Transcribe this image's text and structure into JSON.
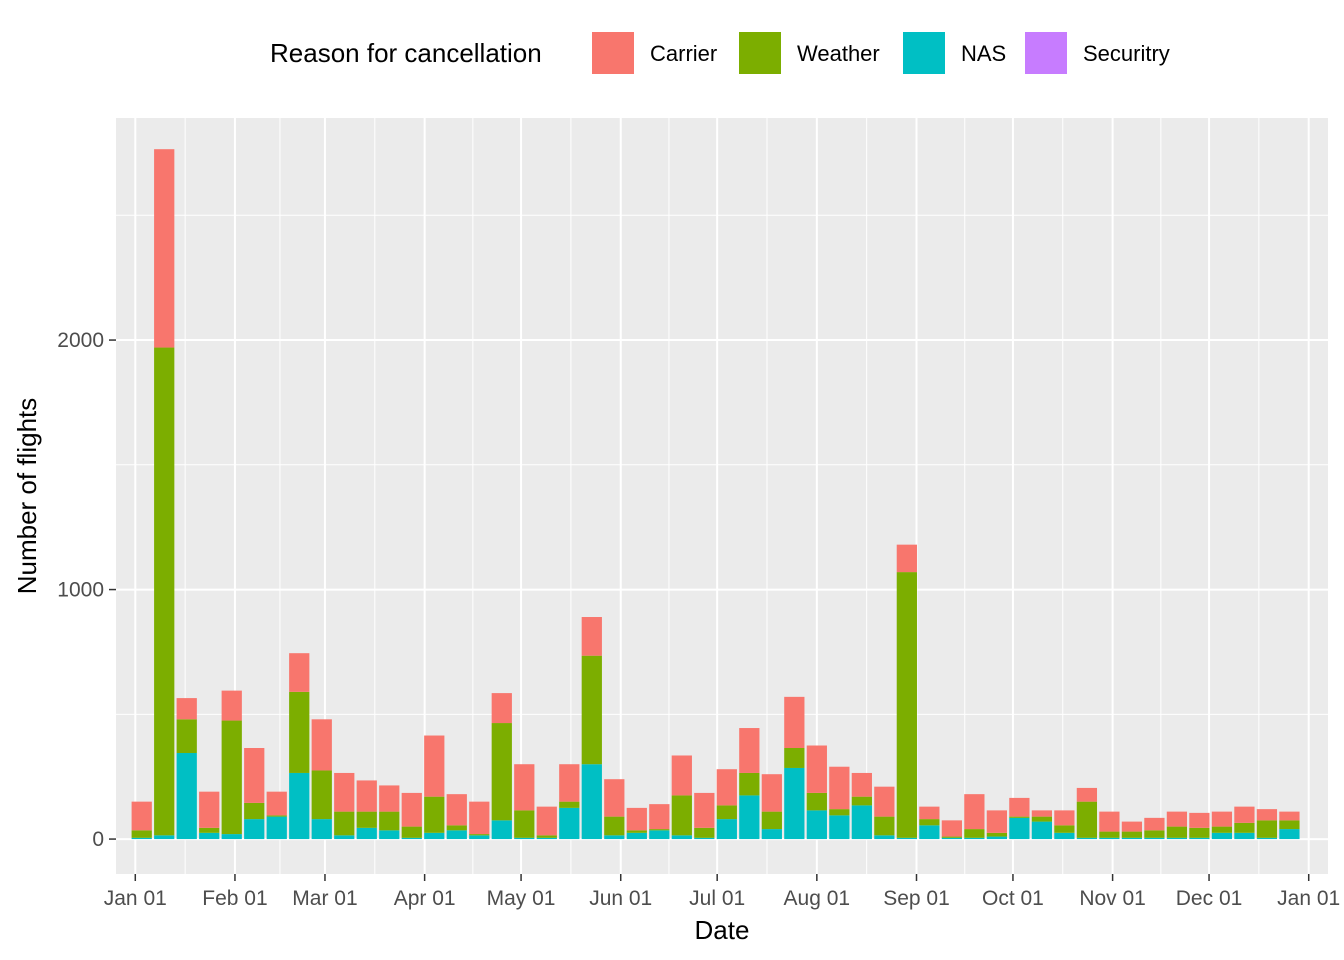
{
  "legend": {
    "title": "Reason for cancellation",
    "items": [
      {
        "label": "Carrier",
        "color": "#F8766D"
      },
      {
        "label": "Weather",
        "color": "#7CAE00"
      },
      {
        "label": "NAS",
        "color": "#00BFC4"
      },
      {
        "label": "Securitry",
        "color": "#C77CFF"
      }
    ]
  },
  "chart_data": {
    "type": "bar",
    "stacked": true,
    "title": "",
    "xlabel": "Date",
    "ylabel": "Number of flights",
    "ylim": [
      -140,
      2890
    ],
    "xlim": [
      "2012-12-26",
      "2014-01-07"
    ],
    "grid": true,
    "legend_position": "top",
    "y_ticks": [
      0,
      1000,
      2000
    ],
    "y_tick_labels": [
      "0",
      "1000",
      "2000"
    ],
    "x_ticks": [
      "2013-01-01",
      "2013-02-01",
      "2013-03-01",
      "2013-04-01",
      "2013-05-01",
      "2013-06-01",
      "2013-07-01",
      "2013-08-01",
      "2013-09-01",
      "2013-10-01",
      "2013-11-01",
      "2013-12-01",
      "2014-01-01"
    ],
    "x_tick_labels": [
      "Jan 01",
      "Feb 01",
      "Mar 01",
      "Apr 01",
      "May 01",
      "Jun 01",
      "Jul 01",
      "Aug 01",
      "Sep 01",
      "Oct 01",
      "Nov 01",
      "Dec 01",
      "Jan 01"
    ],
    "x": [
      "2013-01-03",
      "2013-01-10",
      "2013-01-17",
      "2013-01-24",
      "2013-01-31",
      "2013-02-07",
      "2013-02-14",
      "2013-02-21",
      "2013-02-28",
      "2013-03-07",
      "2013-03-14",
      "2013-03-21",
      "2013-03-28",
      "2013-04-04",
      "2013-04-11",
      "2013-04-18",
      "2013-04-25",
      "2013-05-02",
      "2013-05-09",
      "2013-05-16",
      "2013-05-23",
      "2013-05-30",
      "2013-06-06",
      "2013-06-13",
      "2013-06-20",
      "2013-06-27",
      "2013-07-04",
      "2013-07-11",
      "2013-07-18",
      "2013-07-25",
      "2013-08-01",
      "2013-08-08",
      "2013-08-15",
      "2013-08-22",
      "2013-08-29",
      "2013-09-05",
      "2013-09-12",
      "2013-09-19",
      "2013-09-26",
      "2013-10-03",
      "2013-10-10",
      "2013-10-17",
      "2013-10-24",
      "2013-10-31",
      "2013-11-07",
      "2013-11-14",
      "2013-11-21",
      "2013-11-28",
      "2013-12-05",
      "2013-12-12",
      "2013-12-19",
      "2013-12-26"
    ],
    "series": [
      {
        "name": "NAS",
        "color": "#00BFC4",
        "values": [
          5,
          15,
          345,
          25,
          20,
          80,
          90,
          265,
          80,
          15,
          45,
          35,
          5,
          25,
          35,
          15,
          75,
          5,
          5,
          125,
          300,
          15,
          25,
          35,
          15,
          5,
          80,
          175,
          40,
          285,
          115,
          95,
          135,
          15,
          5,
          55,
          5,
          5,
          10,
          85,
          70,
          25,
          5,
          5,
          5,
          5,
          5,
          5,
          25,
          25,
          5,
          40
        ]
      },
      {
        "name": "Weather",
        "color": "#7CAE00",
        "values": [
          30,
          1955,
          135,
          20,
          455,
          65,
          5,
          325,
          195,
          95,
          65,
          75,
          45,
          145,
          20,
          5,
          390,
          110,
          10,
          25,
          435,
          75,
          10,
          5,
          160,
          40,
          55,
          90,
          70,
          80,
          70,
          25,
          35,
          75,
          1065,
          25,
          5,
          35,
          15,
          5,
          20,
          30,
          145,
          25,
          25,
          30,
          45,
          40,
          25,
          40,
          70,
          35
        ]
      },
      {
        "name": "Carrier",
        "color": "#F8766D",
        "values": [
          115,
          795,
          85,
          145,
          120,
          220,
          95,
          155,
          205,
          155,
          125,
          105,
          135,
          245,
          125,
          130,
          120,
          185,
          115,
          150,
          155,
          150,
          90,
          100,
          160,
          140,
          145,
          180,
          150,
          205,
          190,
          170,
          95,
          120,
          110,
          50,
          65,
          140,
          90,
          75,
          25,
          60,
          55,
          80,
          40,
          50,
          60,
          60,
          60,
          65,
          45,
          35
        ]
      },
      {
        "name": "Securitry",
        "color": "#C77CFF",
        "values": [
          0,
          0,
          0,
          0,
          0,
          0,
          0,
          0,
          0,
          0,
          0,
          0,
          0,
          0,
          0,
          0,
          0,
          0,
          0,
          0,
          0,
          0,
          0,
          0,
          0,
          0,
          0,
          0,
          0,
          0,
          0,
          0,
          0,
          0,
          0,
          0,
          0,
          0,
          0,
          0,
          0,
          0,
          0,
          0,
          0,
          0,
          0,
          0,
          0,
          0,
          0,
          0
        ]
      }
    ]
  }
}
